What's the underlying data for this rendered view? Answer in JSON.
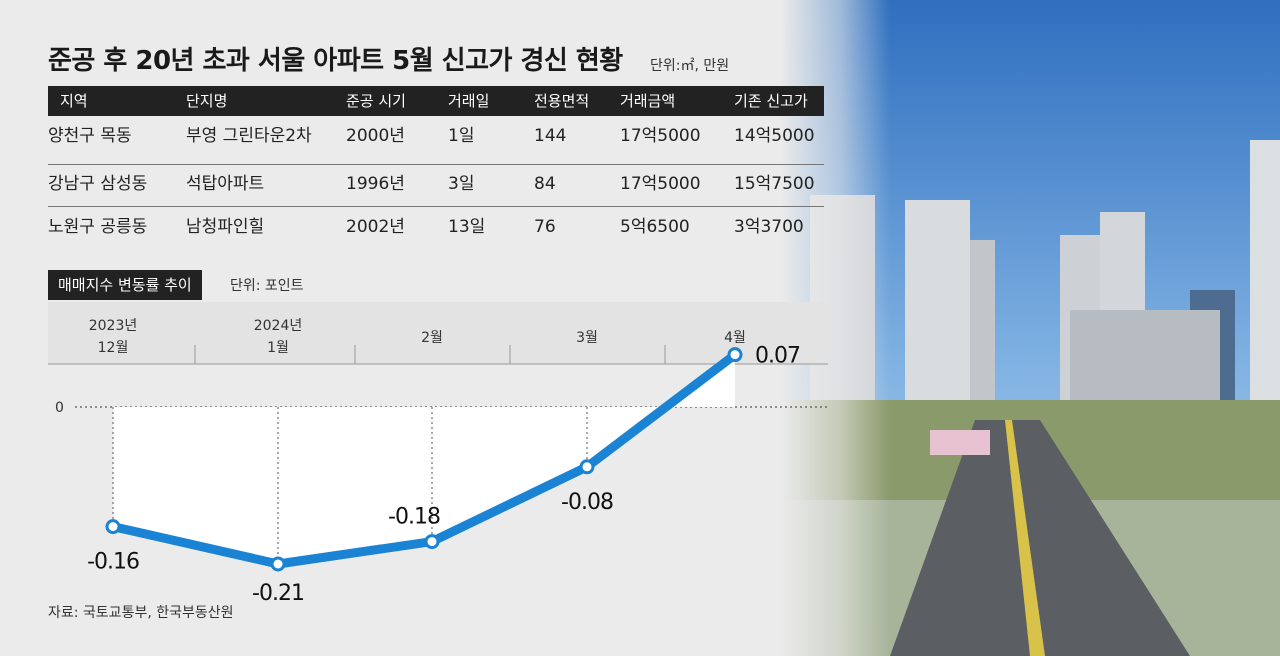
{
  "title": "준공 후 20년 초과 서울 아파트 5월 신고가 경신 현황",
  "unit_top": "단위:㎡, 만원",
  "table": {
    "headers": [
      "지역",
      "단지명",
      "준공 시기",
      "거래일",
      "전용면적",
      "거래금액",
      "기존 신고가"
    ],
    "rows": [
      [
        "양천구 목동",
        "부영 그린타운2차",
        "2000년",
        "1일",
        "144",
        "17억5000",
        "14억5000"
      ],
      [
        "강남구 삼성동",
        "석탑아파트",
        "1996년",
        "3일",
        "84",
        "17억5000",
        "15억7500"
      ],
      [
        "노원구 공릉동",
        "남청파인힐",
        "2002년",
        "13일",
        "76",
        "5억6500",
        "3억3700"
      ]
    ]
  },
  "chart_title": "매매지수 변동률 추이",
  "chart_unit": "단위: 포인트",
  "source": "자료: 국토교통부, 한국부동산원",
  "colors": {
    "line": "#1b83d3",
    "dark": "#222222",
    "background": "#ebebeb"
  },
  "chart_data": {
    "type": "line",
    "categories": [
      [
        "2023년",
        "12월"
      ],
      [
        "2024년",
        "1월"
      ],
      [
        "2월"
      ],
      [
        "3월"
      ],
      [
        "4월"
      ]
    ],
    "values": [
      -0.16,
      -0.21,
      -0.18,
      -0.08,
      0.07
    ],
    "labels": [
      "-0.16",
      "-0.21",
      "-0.18",
      "-0.08",
      "0.07"
    ],
    "zero_label": "0",
    "ylim": [
      -0.21,
      0.07
    ]
  }
}
